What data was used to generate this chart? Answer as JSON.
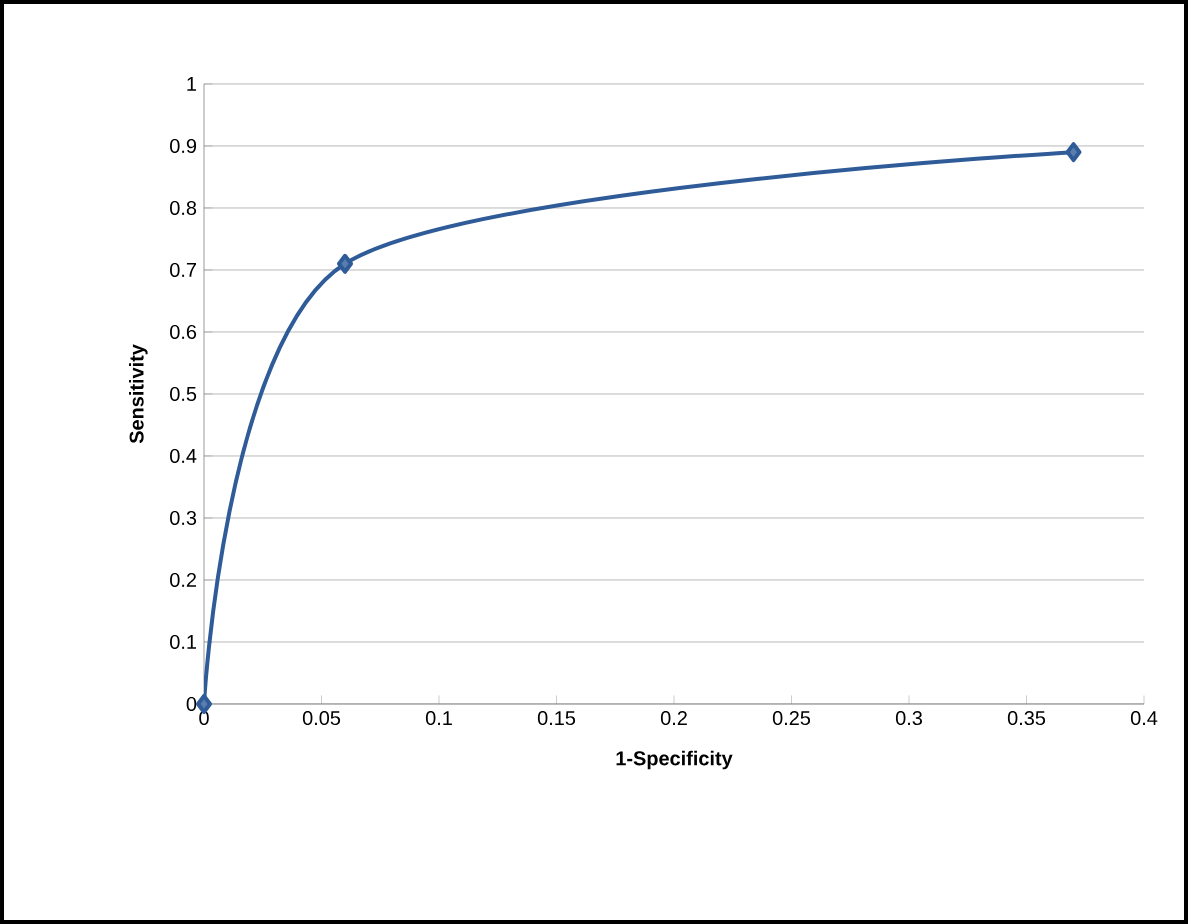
{
  "chart_data": {
    "type": "line",
    "xlabel": "1-Specificity",
    "ylabel": "Sensitivity",
    "x": [
      0,
      0.06,
      0.37
    ],
    "series": [
      {
        "color": "#2f5c98",
        "values": [
          0,
          0.71,
          0.89
        ]
      }
    ],
    "xlim": [
      0,
      0.4
    ],
    "xticks": [
      0,
      0.05,
      0.1,
      0.15,
      0.2,
      0.25,
      0.3,
      0.35,
      0.4
    ],
    "ylim": [
      0,
      1
    ],
    "yticks": [
      0,
      0.1,
      0.2,
      0.3,
      0.4,
      0.5,
      0.6,
      0.7,
      0.8,
      0.9,
      1
    ],
    "grid": "y",
    "marker": "diamond",
    "line_style": "solid"
  }
}
